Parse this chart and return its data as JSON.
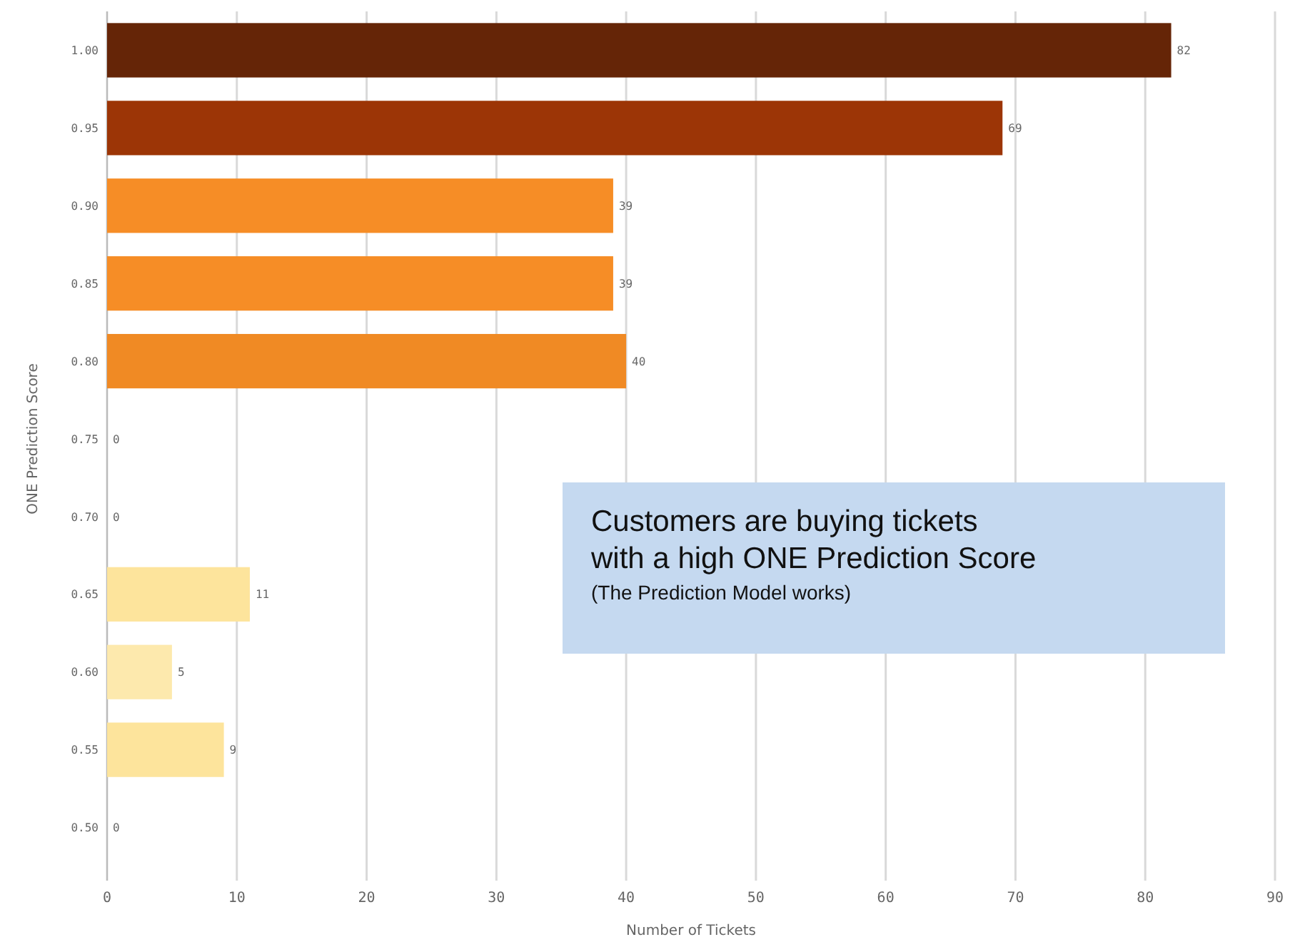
{
  "chart_data": {
    "type": "bar",
    "orientation": "horizontal",
    "xlabel": "Number of Tickets",
    "ylabel": "ONE Prediction Score",
    "categories": [
      "1.00",
      "0.95",
      "0.90",
      "0.85",
      "0.80",
      "0.75",
      "0.70",
      "0.65",
      "0.60",
      "0.55",
      "0.50"
    ],
    "values": [
      82,
      69,
      39,
      39,
      40,
      0,
      0,
      11,
      5,
      9,
      0
    ],
    "colors": [
      "#652507",
      "#9c3506",
      "#f68d26",
      "#f68d26",
      "#f08a24",
      "#f08a24",
      "#fde49c",
      "#fde49c",
      "#fde9ad",
      "#fde49c",
      "#fde49c"
    ],
    "xlim": [
      0,
      90
    ],
    "xticks": [
      0,
      10,
      20,
      30,
      40,
      50,
      60,
      70,
      80,
      90
    ],
    "grid": "x",
    "data_labels": true,
    "annotations": [
      "Customers are buying tickets with a high ONE Prediction Score",
      "(The Prediction Model works)"
    ]
  }
}
